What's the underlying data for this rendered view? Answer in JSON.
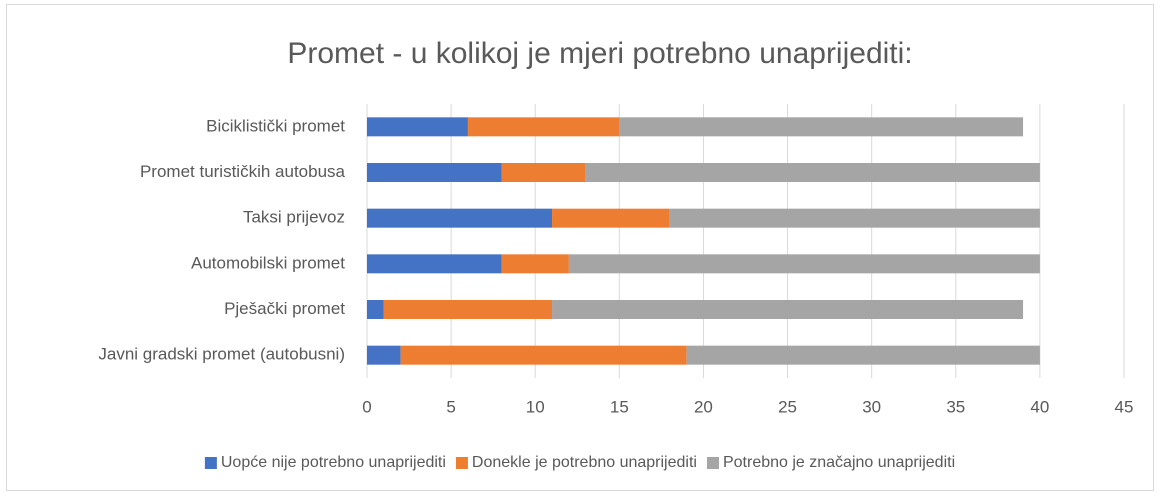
{
  "chart_data": {
    "type": "bar",
    "orientation": "horizontal",
    "stacked": true,
    "title": "Promet - u kolikoj je mjeri potrebno unaprijediti:",
    "categories": [
      "Biciklistički promet",
      "Promet turističkih autobusa",
      "Taksi prijevoz",
      "Automobilski promet",
      "Pješački promet",
      "Javni gradski promet (autobusni)"
    ],
    "series": [
      {
        "name": "Uopće nije potrebno unaprijediti",
        "color": "#4472c4",
        "values": [
          6,
          8,
          11,
          8,
          1,
          2
        ]
      },
      {
        "name": "Donekle je potrebno unaprijediti",
        "color": "#ed7d31",
        "values": [
          9,
          5,
          7,
          4,
          10,
          17
        ]
      },
      {
        "name": "Potrebno je značajno unaprijediti",
        "color": "#a5a5a5",
        "values": [
          24,
          27,
          22,
          28,
          28,
          21
        ]
      }
    ],
    "xlim": [
      0,
      45
    ],
    "xticks": [
      0,
      5,
      10,
      15,
      20,
      25,
      30,
      35,
      40,
      45
    ],
    "grid": true,
    "legend": "bottom"
  }
}
